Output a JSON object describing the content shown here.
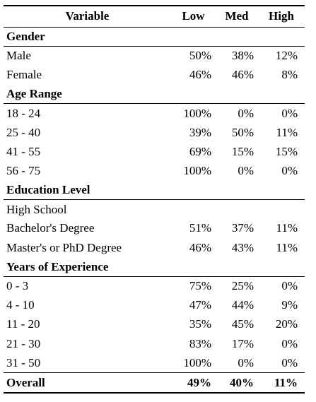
{
  "header": {
    "variable": "Variable",
    "low": "Low",
    "med": "Med",
    "high": "High"
  },
  "sections": [
    {
      "title": "Gender",
      "rows": [
        {
          "label": "Male",
          "low": "50%",
          "med": "38%",
          "high": "12%"
        },
        {
          "label": "Female",
          "low": "46%",
          "med": "46%",
          "high": "8%"
        }
      ]
    },
    {
      "title": "Age Range",
      "rows": [
        {
          "label": "18 - 24",
          "low": "100%",
          "med": "0%",
          "high": "0%"
        },
        {
          "label": "25 - 40",
          "low": "39%",
          "med": "50%",
          "high": "11%"
        },
        {
          "label": "41 - 55",
          "low": "69%",
          "med": "15%",
          "high": "15%"
        },
        {
          "label": "56 - 75",
          "low": "100%",
          "med": "0%",
          "high": "0%"
        }
      ]
    },
    {
      "title": "Education Level",
      "rows": [
        {
          "label": "High School",
          "low": "",
          "med": "",
          "high": ""
        },
        {
          "label": "Bachelor's Degree",
          "low": "51%",
          "med": "37%",
          "high": "11%"
        },
        {
          "label": "Master's or PhD Degree",
          "low": "46%",
          "med": "43%",
          "high": "11%"
        }
      ]
    },
    {
      "title": "Years of Experience",
      "rows": [
        {
          "label": "0 - 3",
          "low": "75%",
          "med": "25%",
          "high": "0%"
        },
        {
          "label": "4 - 10",
          "low": "47%",
          "med": "44%",
          "high": "9%"
        },
        {
          "label": "11 - 20",
          "low": "35%",
          "med": "45%",
          "high": "20%"
        },
        {
          "label": "21 - 30",
          "low": "83%",
          "med": "17%",
          "high": "0%"
        },
        {
          "label": "31 - 50",
          "low": "100%",
          "med": "0%",
          "high": "0%"
        }
      ]
    }
  ],
  "overall": {
    "label": "Overall",
    "low": "49%",
    "med": "40%",
    "high": "11%"
  }
}
